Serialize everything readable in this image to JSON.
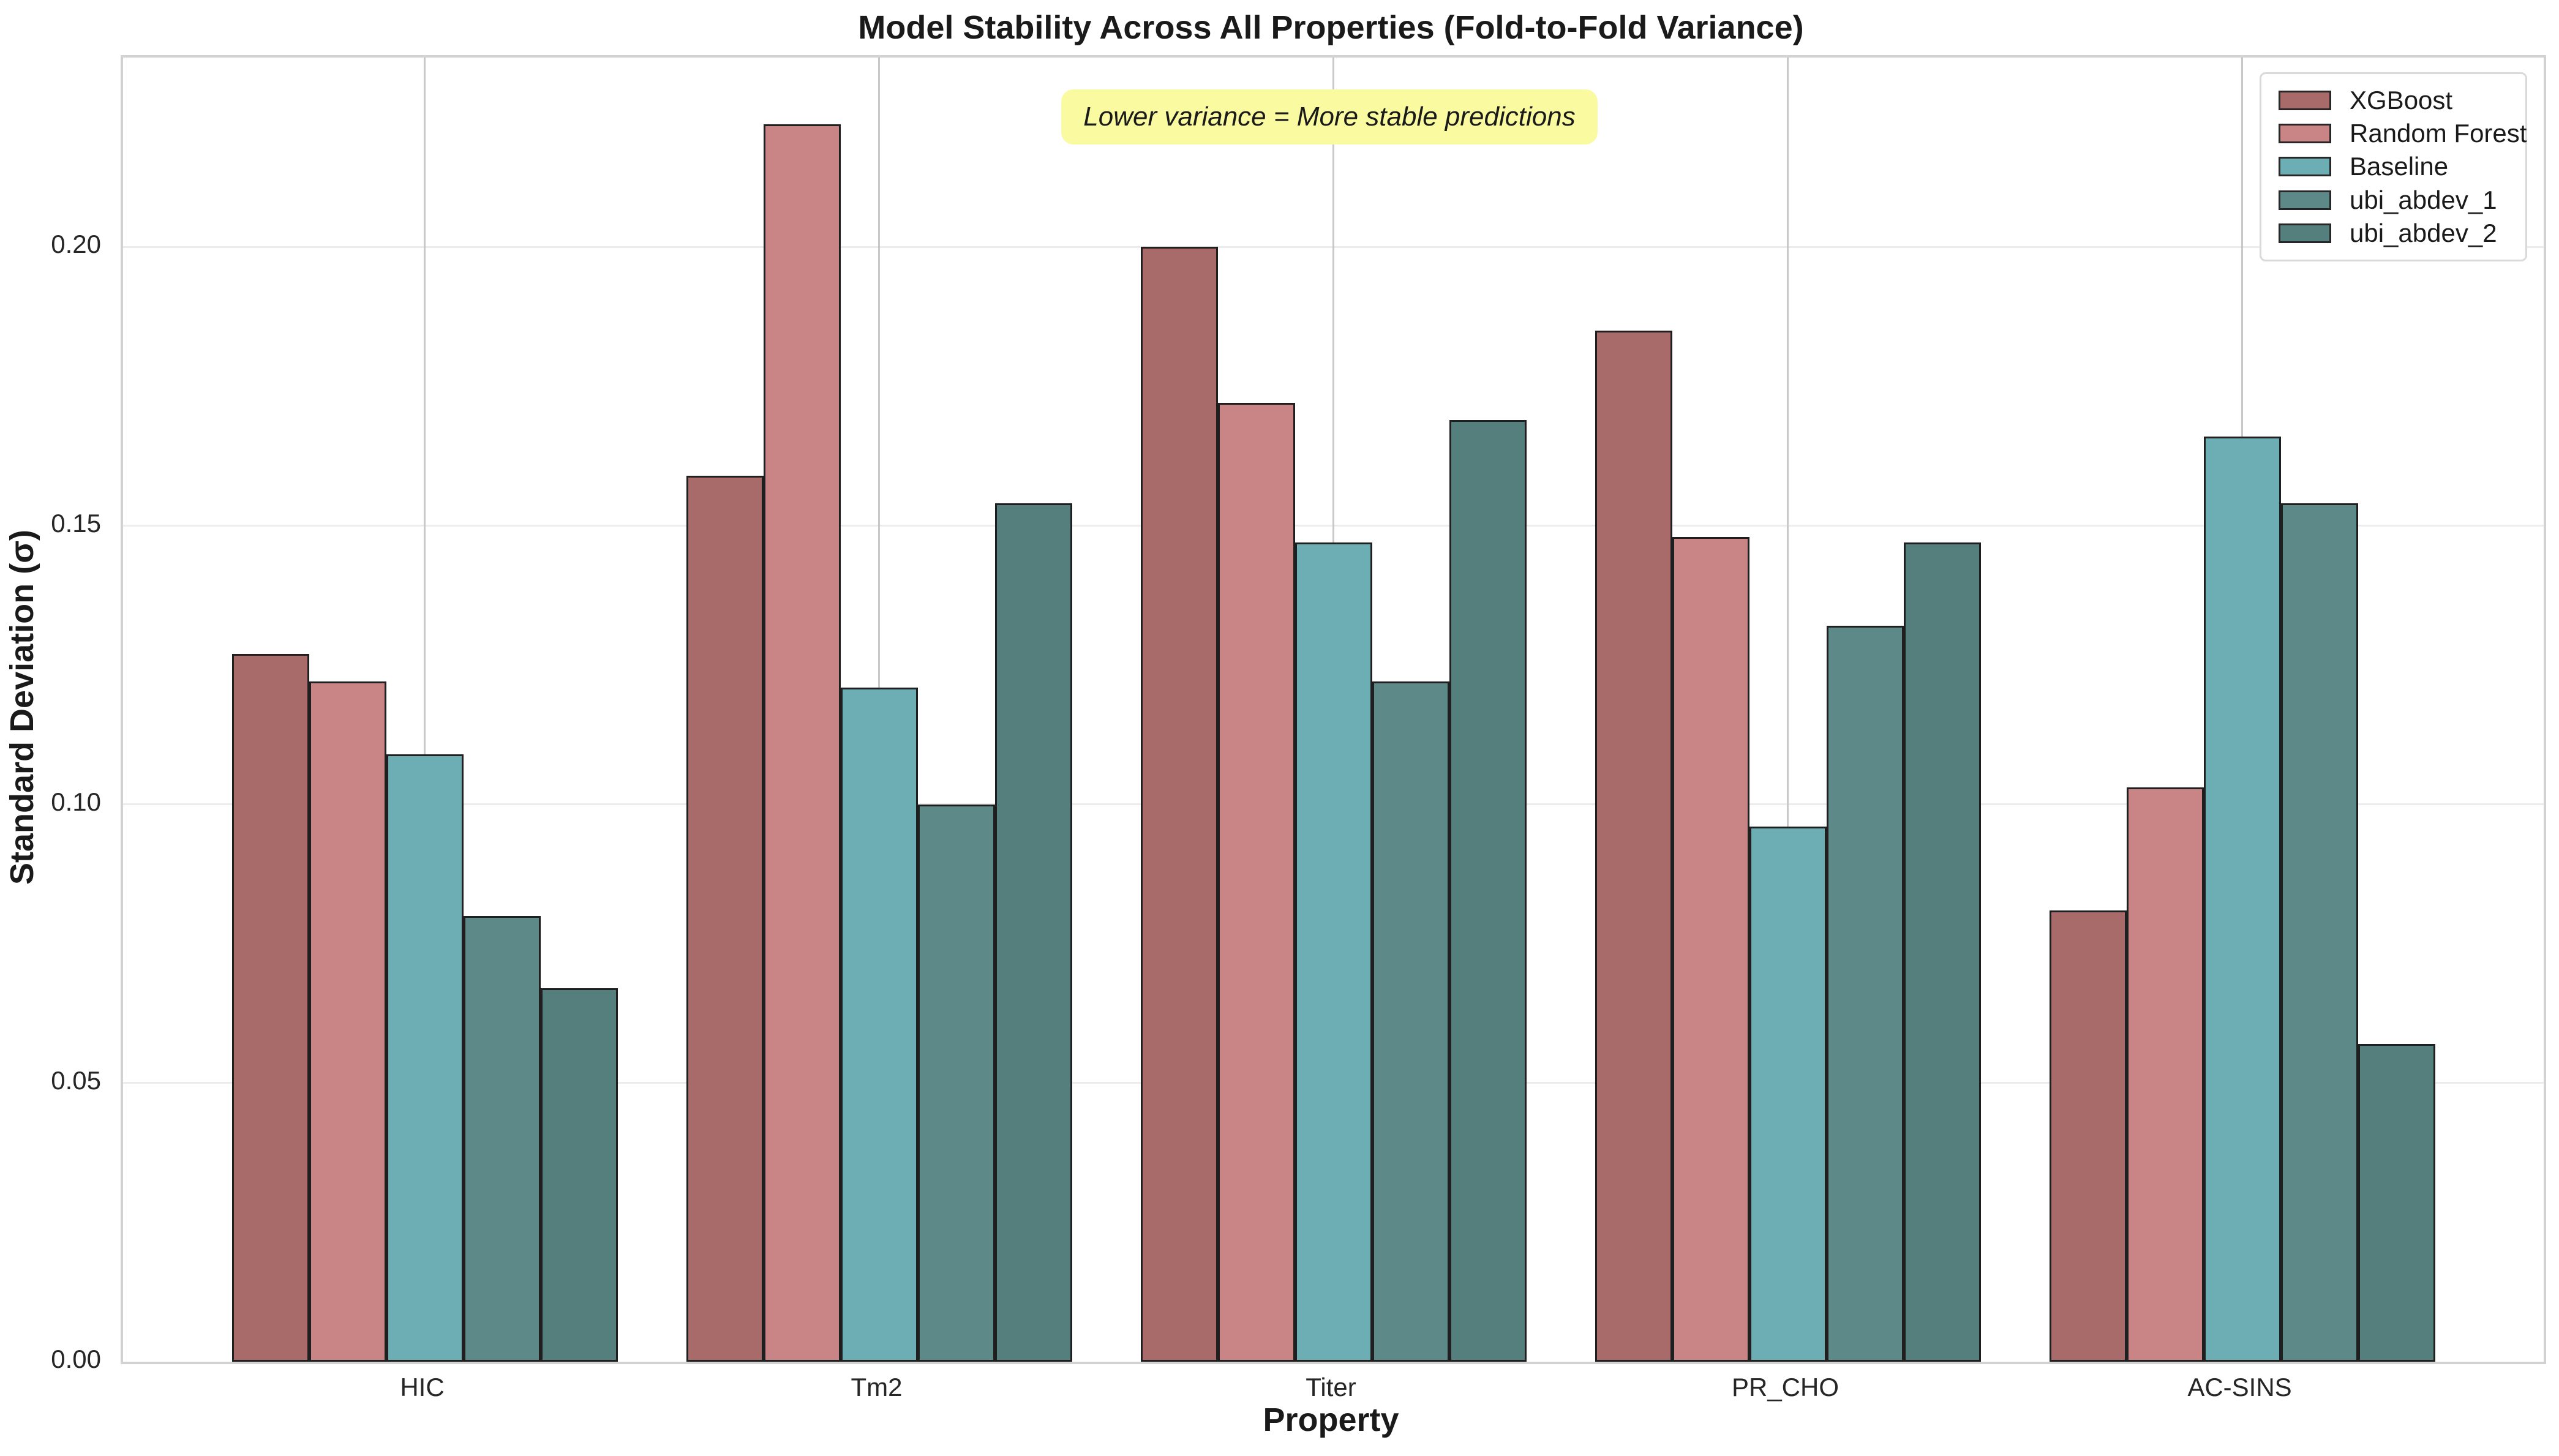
{
  "chart_data": {
    "type": "bar",
    "title": "Model Stability Across All Properties (Fold-to-Fold Variance)",
    "xlabel": "Property",
    "ylabel": "Standard Deviation (σ)",
    "categories": [
      "HIC",
      "Tm2",
      "Titer",
      "PR_CHO",
      "AC-SINS"
    ],
    "series": [
      {
        "name": "XGBoost",
        "color": "#a96a6a",
        "values": [
          0.127,
          0.159,
          0.2,
          0.185,
          0.081
        ]
      },
      {
        "name": "Random Forest",
        "color": "#c98486",
        "values": [
          0.122,
          0.222,
          0.172,
          0.148,
          0.103
        ]
      },
      {
        "name": "Baseline",
        "color": "#6caeb4",
        "values": [
          0.109,
          0.121,
          0.147,
          0.096,
          0.166
        ]
      },
      {
        "name": "ubi_abdev_1",
        "color": "#5d8a88",
        "values": [
          0.08,
          0.1,
          0.122,
          0.132,
          0.154
        ]
      },
      {
        "name": "ubi_abdev_2",
        "color": "#547f7d",
        "values": [
          0.067,
          0.154,
          0.169,
          0.147,
          0.057
        ]
      }
    ],
    "ylim": [
      0,
      0.234
    ],
    "yticks": [
      "0.00",
      "0.05",
      "0.10",
      "0.15",
      "0.20"
    ],
    "grid": true,
    "legend_position": "upper right",
    "annotation": "Lower variance = More stable predictions",
    "annotation_bg": "#fafaa0",
    "bar_edge_color": "#1f1f1f",
    "background": "#ffffff"
  }
}
